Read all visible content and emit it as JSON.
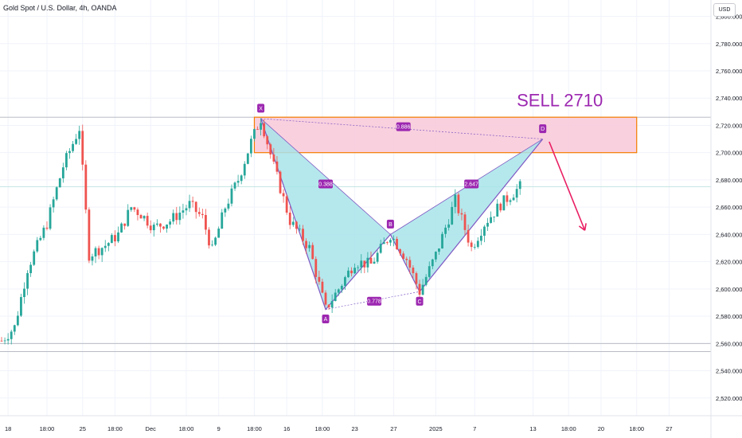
{
  "header": {
    "title": "Gold Spot / U.S. Dollar, 4h, OANDA",
    "currency_button": "USD"
  },
  "colors": {
    "bull": "#26a69a",
    "bear": "#ef5350",
    "pattern_fill": "#a8e4ea",
    "pattern_line": "#7e57c2",
    "zone_fill": "#f8c8d8",
    "zone_border": "#f57c00",
    "point_label": "#9c27b0",
    "arrow": "#e91e63",
    "sell_text": "#9c27b0"
  },
  "chart_data": {
    "type": "candlestick",
    "symbol": "Gold Spot / U.S. Dollar",
    "interval": "4h",
    "source": "OANDA",
    "y_ticks": [
      2520,
      2540,
      2560,
      2580,
      2600,
      2620,
      2640,
      2660,
      2680,
      2700,
      2720,
      2740,
      2760,
      2780,
      2800
    ],
    "y_tick_labels": [
      "2,520.000",
      "2,540.000",
      "2,560.000",
      "2,580.000",
      "2,600.000",
      "2,620.000",
      "2,640.000",
      "2,660.000",
      "2,680.000",
      "2,700.000",
      "2,720.000",
      "2,740.000",
      "2,760.000",
      "2,780.000",
      "2,800.000"
    ],
    "ylim": [
      2507,
      2812
    ],
    "x_labels": [
      "18",
      "18:00",
      "25",
      "18:00",
      "Dec",
      "18:00",
      "9",
      "18:00",
      "16",
      "18:00",
      "23",
      "27",
      "2025",
      "7",
      "13",
      "18:00",
      "20",
      "18:00",
      "27"
    ],
    "x_label_bars": [
      2,
      14,
      25,
      35,
      46,
      57,
      67,
      78,
      88,
      99,
      109,
      121,
      134,
      146,
      164,
      175,
      185,
      196,
      206
    ],
    "total_bars": 230,
    "price_path": [
      [
        0,
        2562
      ],
      [
        4,
        2572
      ],
      [
        8,
        2615
      ],
      [
        14,
        2648
      ],
      [
        19,
        2690
      ],
      [
        24,
        2718
      ],
      [
        27,
        2625
      ],
      [
        32,
        2632
      ],
      [
        36,
        2640
      ],
      [
        40,
        2660
      ],
      [
        43,
        2655
      ],
      [
        47,
        2645
      ],
      [
        52,
        2650
      ],
      [
        58,
        2662
      ],
      [
        62,
        2652
      ],
      [
        65,
        2628
      ],
      [
        69,
        2660
      ],
      [
        73,
        2680
      ],
      [
        77,
        2708
      ],
      [
        80,
        2725
      ],
      [
        84,
        2690
      ],
      [
        89,
        2650
      ],
      [
        95,
        2630
      ],
      [
        100,
        2585
      ],
      [
        104,
        2600
      ],
      [
        109,
        2620
      ],
      [
        114,
        2618
      ],
      [
        120,
        2640
      ],
      [
        125,
        2622
      ],
      [
        129,
        2598
      ],
      [
        134,
        2625
      ],
      [
        140,
        2665
      ],
      [
        145,
        2630
      ],
      [
        149,
        2648
      ],
      [
        154,
        2662
      ],
      [
        160,
        2675
      ]
    ],
    "pattern": {
      "name": "harmonic",
      "points": [
        {
          "label": "X",
          "bar": 80,
          "price": 2725
        },
        {
          "label": "A",
          "bar": 100,
          "price": 2585
        },
        {
          "label": "B",
          "bar": 120,
          "price": 2640
        },
        {
          "label": "C",
          "bar": 129,
          "price": 2598
        },
        {
          "label": "D",
          "bar": 167,
          "price": 2710
        }
      ],
      "ratios": [
        {
          "label": "0.388",
          "bar": 100,
          "price": 2677
        },
        {
          "label": "0.778",
          "bar": 115,
          "price": 2591
        },
        {
          "label": "2.647",
          "bar": 145,
          "price": 2677
        },
        {
          "label": "0.886",
          "bar": 124,
          "price": 2719
        }
      ]
    },
    "sell_zone": {
      "bar_start": 78,
      "bar_end": 196,
      "price_low": 2700,
      "price_high": 2726
    },
    "annotation": {
      "text": "SELL 2710",
      "bar": 159,
      "price": 2734
    },
    "arrow": {
      "from_bar": 169,
      "from_price": 2708,
      "to_bar": 180,
      "to_price": 2643
    },
    "horizontal_levels": [
      2726,
      2675,
      2560,
      2554
    ]
  }
}
